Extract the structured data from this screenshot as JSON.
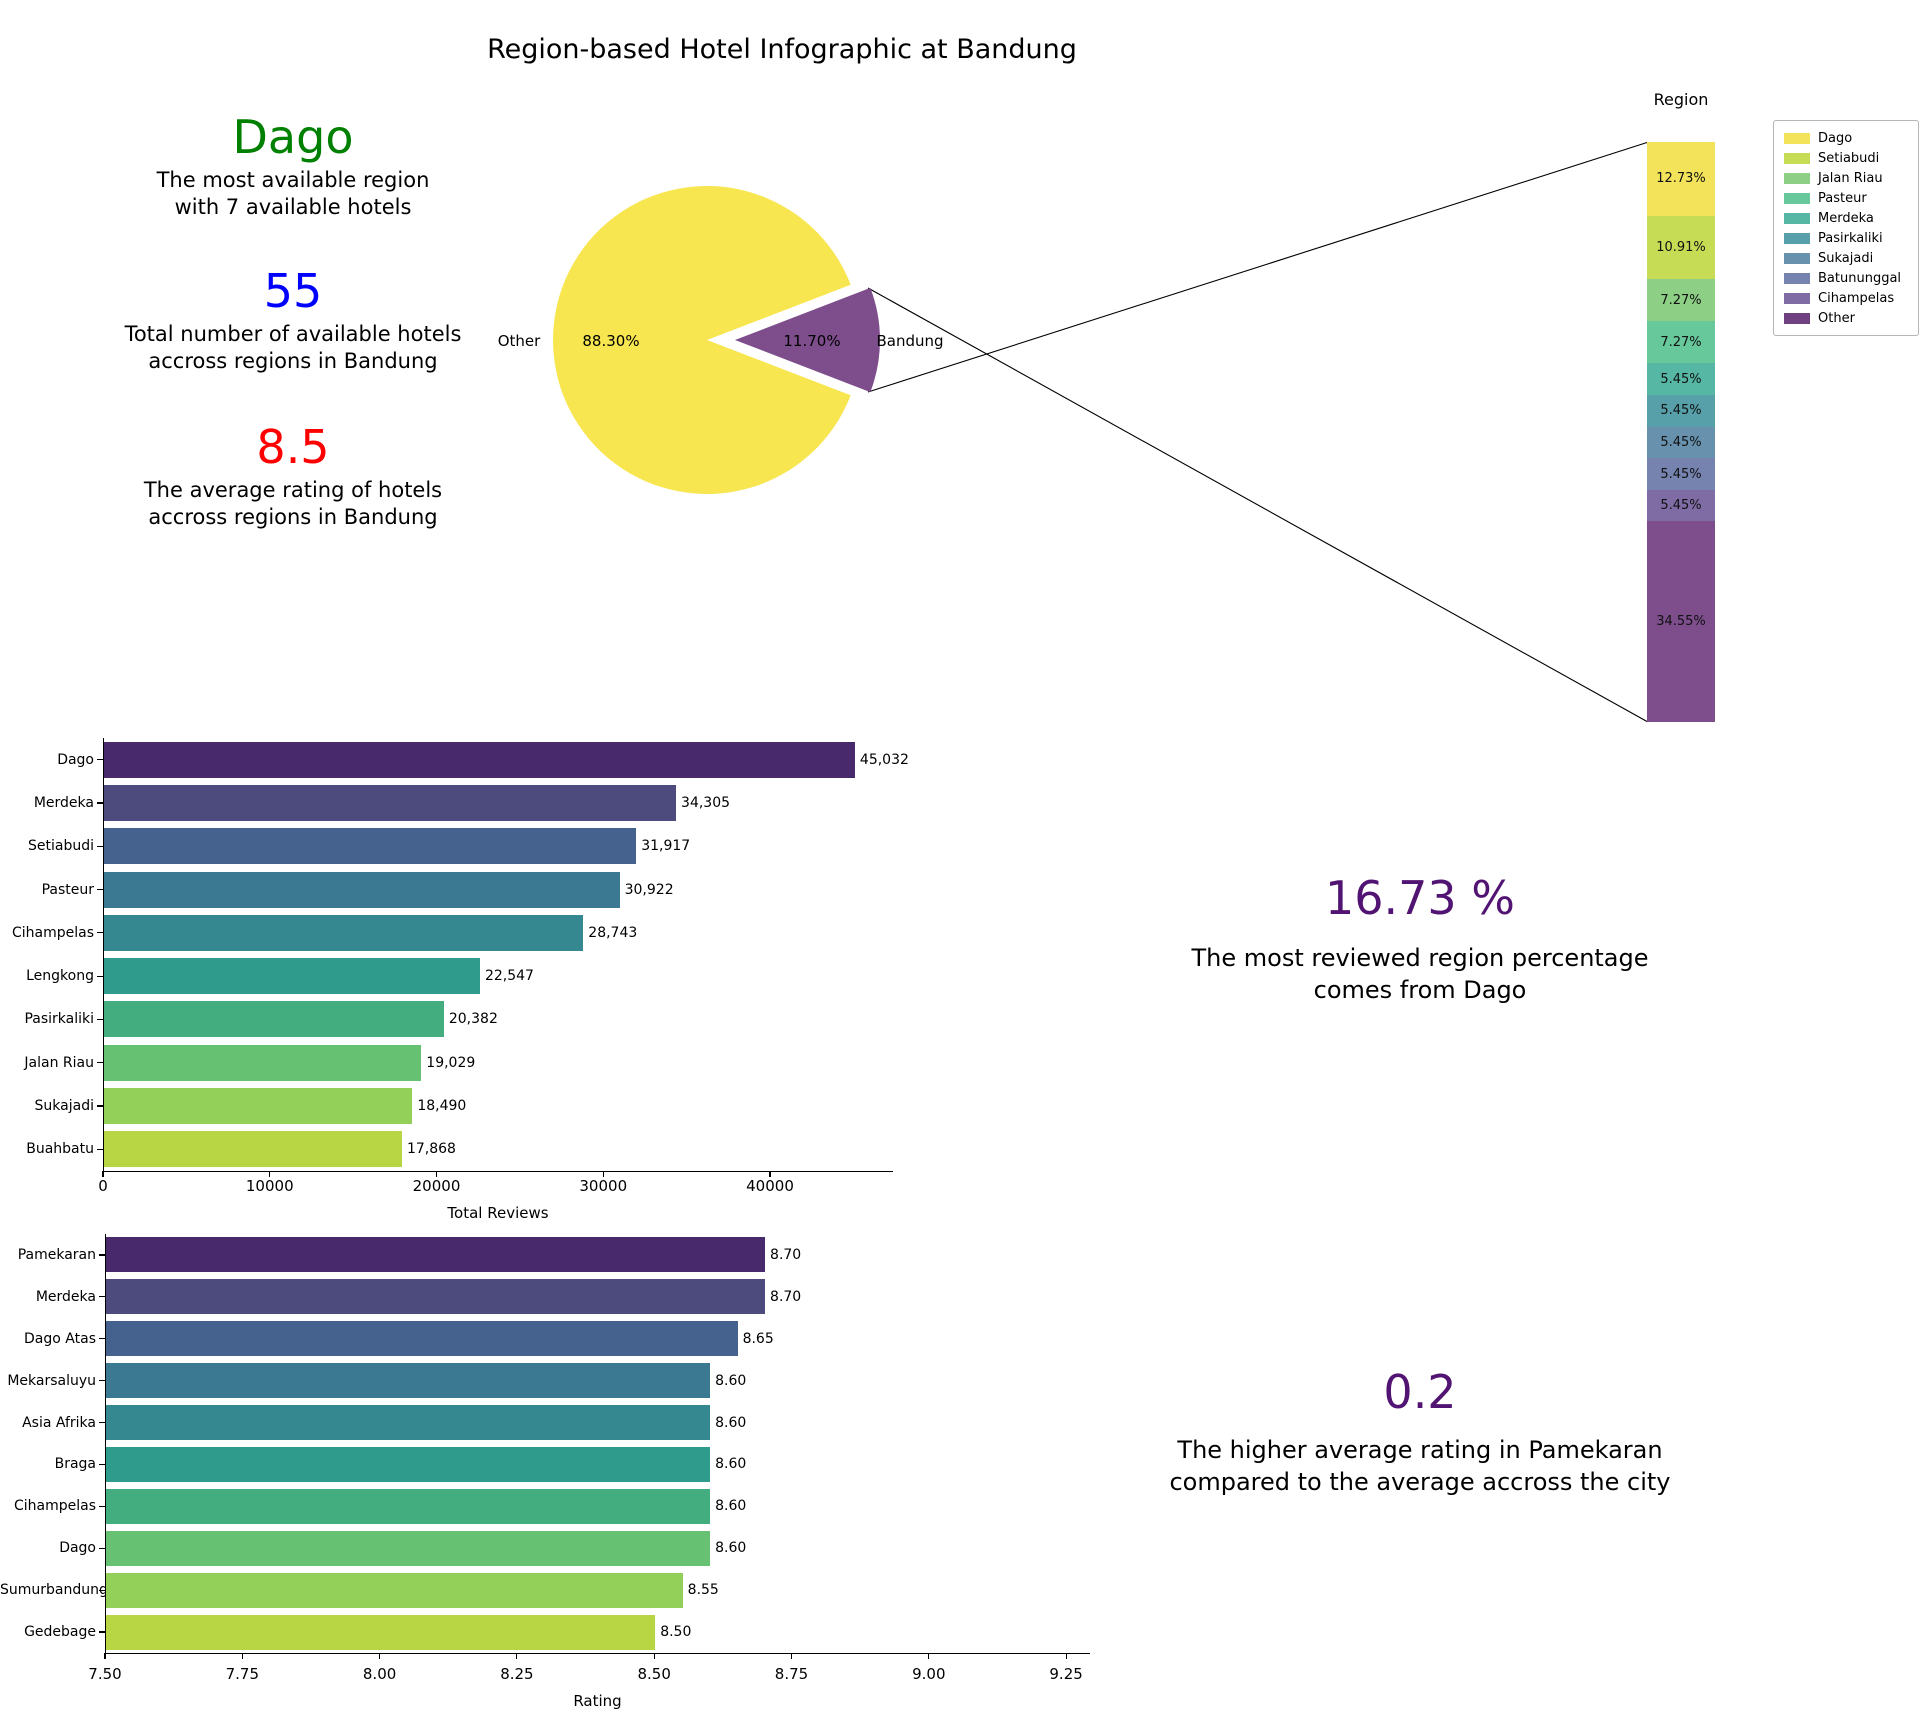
{
  "title": "Region-based Hotel Infographic at Bandung",
  "accent_colors": {
    "stat_green": "#008000",
    "stat_blue": "#0000ff",
    "stat_red": "#ff0000",
    "callout_purple": "#521472",
    "pie_yellow": "#f7e64f",
    "pie_purple": "#7d4d8c"
  },
  "stats": [
    {
      "value": "Dago",
      "color": "#008000",
      "lines": [
        "The most available region",
        "with 7 available hotels"
      ]
    },
    {
      "value": "55",
      "color": "#0000ff",
      "lines": [
        "Total number of available hotels",
        "accross regions in Bandung"
      ]
    },
    {
      "value": "8.5",
      "color": "#ff0000",
      "lines": [
        "The average rating of hotels",
        "accross regions in Bandung"
      ]
    }
  ],
  "callouts": [
    {
      "value": "16.73 %",
      "color": "#521472",
      "lines": [
        "The most reviewed region percentage",
        "comes from Dago"
      ]
    },
    {
      "value": "0.2",
      "color": "#521472",
      "lines": [
        "The higher average rating in Pamekaran",
        "compared to the average accross the city"
      ]
    }
  ],
  "chart_data": [
    {
      "type": "pie",
      "labels": [
        "Other",
        "Bandung"
      ],
      "values": [
        88.3,
        11.7
      ],
      "value_labels": [
        "88.30%",
        "11.70%"
      ],
      "colors": [
        "#f7e64f",
        "#7d4d8c"
      ],
      "note": "Bandung wedge exploded toward the stacked Region bar, connected with two lines"
    },
    {
      "type": "bar",
      "subtype": "stacked-percentage-column",
      "legend_title": "Region",
      "categories": [
        "Dago",
        "Setiabudi",
        "Jalan Riau",
        "Pasteur",
        "Merdeka",
        "Pasirkaliki",
        "Sukajadi",
        "Batununggal",
        "Cihampelas",
        "Other"
      ],
      "values": [
        12.73,
        10.91,
        7.27,
        7.27,
        5.45,
        5.45,
        5.45,
        5.45,
        5.45,
        34.55
      ],
      "value_labels": [
        "12.73%",
        "10.91%",
        "7.27%",
        "7.27%",
        "5.45%",
        "5.45%",
        "5.45%",
        "5.45%",
        "5.45%",
        "34.55%"
      ],
      "colors": [
        "#f2e35b",
        "#c6dc55",
        "#8ccf85",
        "#67c89c",
        "#56b7a5",
        "#579fa9",
        "#6791ad",
        "#7583ae",
        "#7f6ca5",
        "#7d4d8c"
      ],
      "legend_colors": [
        "#f2e35b",
        "#c6dc55",
        "#8ccf85",
        "#67c89c",
        "#56b7a5",
        "#579fa9",
        "#6791ad",
        "#7583ae",
        "#7f6ca5",
        "#6f4181"
      ]
    },
    {
      "type": "bar",
      "orientation": "horizontal",
      "xlabel": "Total Reviews",
      "categories": [
        "Dago",
        "Merdeka",
        "Setiabudi",
        "Pasteur",
        "Cihampelas",
        "Lengkong",
        "Pasirkaliki",
        "Jalan Riau",
        "Sukajadi",
        "Buahbatu"
      ],
      "values": [
        45032,
        34305,
        31917,
        30922,
        28743,
        22547,
        20382,
        19029,
        18490,
        17868
      ],
      "value_labels": [
        "45,032",
        "34,305",
        "31,917",
        "30,922",
        "28,743",
        "22,547",
        "20,382",
        "19,029",
        "18,490",
        "17,868"
      ],
      "xticks": [
        0,
        10000,
        20000,
        30000,
        40000
      ],
      "xtick_labels": [
        "0",
        "10000",
        "20000",
        "30000",
        "40000"
      ],
      "xlim": [
        0,
        47400
      ],
      "colors": [
        "#482a6c",
        "#4d4a7e",
        "#44628d",
        "#3b7892",
        "#35888f",
        "#2f9b8d",
        "#43ad80",
        "#66c272",
        "#93d05a",
        "#b8d643"
      ]
    },
    {
      "type": "bar",
      "orientation": "horizontal",
      "xlabel": "Rating",
      "categories": [
        "Pamekaran",
        "Merdeka",
        "Dago Atas",
        "Mekarsaluyu",
        "Asia Afrika",
        "Braga",
        "Cihampelas",
        "Dago",
        "Sumurbandung",
        "Gedebage"
      ],
      "values": [
        8.7,
        8.7,
        8.65,
        8.6,
        8.6,
        8.6,
        8.6,
        8.6,
        8.55,
        8.5
      ],
      "value_labels": [
        "8.70",
        "8.70",
        "8.65",
        "8.60",
        "8.60",
        "8.60",
        "8.60",
        "8.60",
        "8.55",
        "8.50"
      ],
      "xticks": [
        7.5,
        7.75,
        8.0,
        8.25,
        8.5,
        8.75,
        9.0,
        9.25
      ],
      "xtick_labels": [
        "7.50",
        "7.75",
        "8.00",
        "8.25",
        "8.50",
        "8.75",
        "9.00",
        "9.25"
      ],
      "xlim": [
        7.5,
        9.3
      ],
      "colors": [
        "#482a6c",
        "#4d4a7e",
        "#44628d",
        "#3b7892",
        "#35888f",
        "#2f9b8d",
        "#43ad80",
        "#66c272",
        "#93d05a",
        "#b8d643"
      ]
    }
  ]
}
